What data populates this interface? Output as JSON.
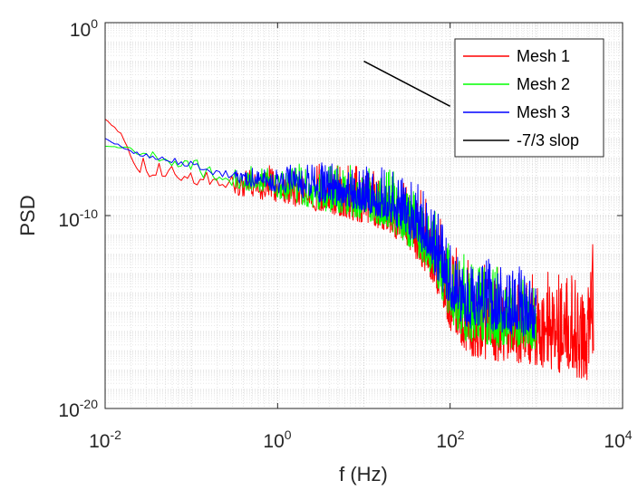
{
  "chart_data": {
    "type": "line",
    "title": "",
    "xlabel": "f (Hz)",
    "ylabel": "PSD",
    "xscale": "log",
    "yscale": "log",
    "xlim": [
      0.01,
      10000
    ],
    "ylim": [
      1e-20,
      1
    ],
    "grid": "on (major and minor, dotted)",
    "legend_position": "top-right",
    "x_tick_labels": [
      {
        "base": "10",
        "exp": "-2",
        "value": 0.01
      },
      {
        "base": "10",
        "exp": "0",
        "value": 1
      },
      {
        "base": "10",
        "exp": "2",
        "value": 100
      },
      {
        "base": "10",
        "exp": "4",
        "value": 10000
      }
    ],
    "y_tick_labels": [
      {
        "base": "10",
        "exp": "0",
        "value": 1
      },
      {
        "base": "10",
        "exp": "-10",
        "value": 1e-10
      },
      {
        "base": "10",
        "exp": "-20",
        "value": 1e-20
      }
    ],
    "series": [
      {
        "name": "Mesh 1",
        "color": "#ff0000",
        "fmax": 4500,
        "envelope_freqs": [
          0.01,
          0.015,
          0.02,
          0.03,
          0.05,
          0.1,
          0.3,
          1,
          3,
          10,
          20,
          30,
          50,
          70,
          100,
          150,
          300,
          1000,
          3000,
          4500
        ],
        "upper_log10_psd": [
          -5.0,
          -5.5,
          -6.5,
          -6.8,
          -7.2,
          -7.4,
          -7.5,
          -7.3,
          -7.2,
          -7.4,
          -7.6,
          -7.9,
          -8.6,
          -9.6,
          -11.0,
          -12.3,
          -12.4,
          -12.6,
          -12.7,
          -11.5
        ],
        "lower_log10_psd": [
          -5.0,
          -5.8,
          -7.5,
          -8.2,
          -8.0,
          -8.4,
          -8.9,
          -9.3,
          -9.8,
          -10.4,
          -10.9,
          -11.6,
          -12.8,
          -14.0,
          -16.0,
          -17.2,
          -17.5,
          -17.8,
          -18.4,
          -18.6
        ]
      },
      {
        "name": "Mesh 2",
        "color": "#00ff00",
        "fmax": 1000,
        "envelope_freqs": [
          0.01,
          0.015,
          0.02,
          0.03,
          0.05,
          0.1,
          0.3,
          1,
          3,
          10,
          20,
          30,
          50,
          70,
          100,
          150,
          300,
          1000
        ],
        "upper_log10_psd": [
          -6.4,
          -6.3,
          -6.3,
          -6.5,
          -6.8,
          -7.0,
          -7.4,
          -7.2,
          -7.1,
          -7.3,
          -7.5,
          -7.8,
          -8.5,
          -9.5,
          -10.8,
          -11.7,
          -12.0,
          -12.5
        ],
        "lower_log10_psd": [
          -6.4,
          -6.5,
          -6.7,
          -7.0,
          -7.3,
          -7.8,
          -8.6,
          -9.1,
          -9.7,
          -10.2,
          -10.7,
          -11.5,
          -12.5,
          -13.7,
          -15.5,
          -16.6,
          -16.8,
          -17.0
        ]
      },
      {
        "name": "Mesh 3",
        "color": "#0000ff",
        "fmax": 1000,
        "envelope_freqs": [
          0.01,
          0.015,
          0.02,
          0.03,
          0.05,
          0.1,
          0.3,
          1,
          3,
          10,
          20,
          30,
          50,
          70,
          100,
          150,
          300,
          1000
        ],
        "upper_log10_psd": [
          -6.0,
          -6.3,
          -6.5,
          -6.6,
          -6.8,
          -7.1,
          -7.3,
          -7.2,
          -7.0,
          -7.2,
          -7.4,
          -7.7,
          -8.4,
          -9.4,
          -10.7,
          -11.8,
          -12.1,
          -12.6
        ],
        "lower_log10_psd": [
          -6.0,
          -6.5,
          -6.8,
          -7.0,
          -7.2,
          -7.6,
          -8.3,
          -8.8,
          -9.3,
          -9.8,
          -10.3,
          -11.0,
          -12.0,
          -13.3,
          -14.8,
          -15.8,
          -16.0,
          -16.4
        ]
      },
      {
        "name": "-7/3 slop",
        "color": "#000000",
        "x": [
          10,
          100
        ],
        "y": [
          0.01,
          4.64e-05
        ]
      }
    ]
  }
}
